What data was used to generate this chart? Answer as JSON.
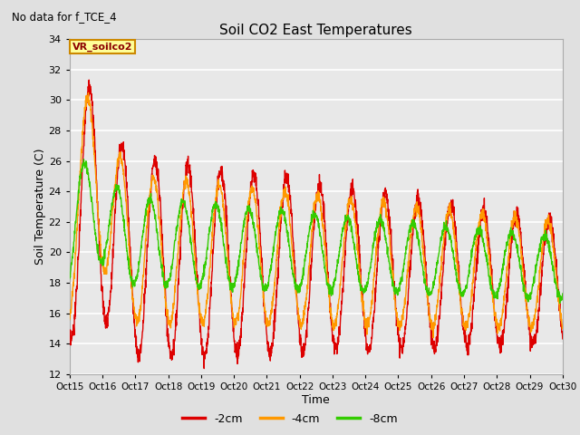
{
  "title": "Soil CO2 East Temperatures",
  "subtitle": "No data for f_TCE_4",
  "xlabel": "Time",
  "ylabel": "Soil Temperature (C)",
  "legend_label": "VR_soilco2",
  "series_labels": [
    "-2cm",
    "-4cm",
    "-8cm"
  ],
  "series_colors": [
    "#dd0000",
    "#ff9900",
    "#33cc00"
  ],
  "ylim": [
    12,
    34
  ],
  "yticks": [
    12,
    14,
    16,
    18,
    20,
    22,
    24,
    26,
    28,
    30,
    32,
    34
  ],
  "xtick_labels": [
    "Oct 15",
    "Oct 16",
    "Oct 17",
    "Oct 18",
    "Oct 19",
    "Oct 20",
    "Oct 21",
    "Oct 22",
    "Oct 23",
    "Oct 24",
    "Oct 25",
    "Oct 26",
    "Oct 27",
    "Oct 28",
    "Oct 29",
    "Oct 30"
  ],
  "bg_color": "#e0e0e0",
  "plot_bg_color": "#e8e8e8",
  "grid_color": "#ffffff",
  "linewidth": 1.0
}
